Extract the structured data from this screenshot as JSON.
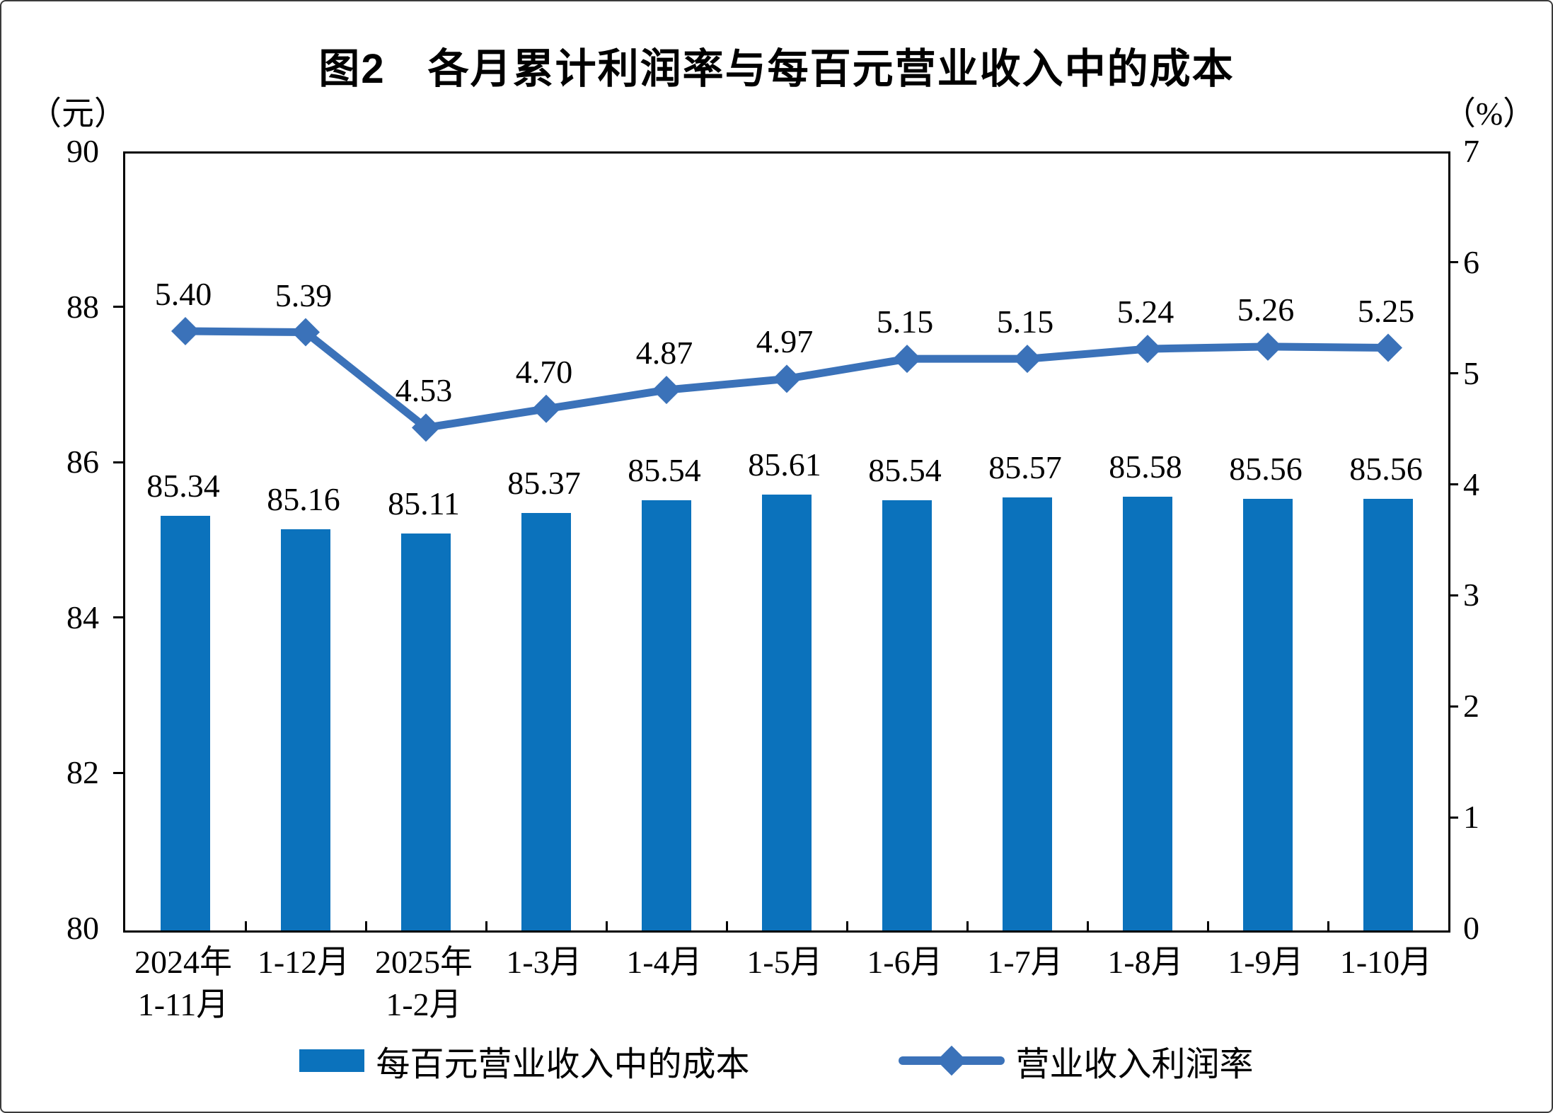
{
  "title": "图2　各月累计利润率与每百元营业收入中的成本",
  "left_axis_unit": "（元）",
  "right_axis_unit": "（%）",
  "colors": {
    "bar": "#0b72bc",
    "line": "#3b72b9",
    "text": "#000000"
  },
  "legend": {
    "items": [
      {
        "label": "每百元营业收入中的成本",
        "marker": "bar-swatch"
      },
      {
        "label": "营业收入利润率",
        "marker": "line-diamond-swatch"
      }
    ]
  },
  "chart_data": {
    "type": "bar",
    "subtype": "bar+line combo, dual axis",
    "categories": [
      "2024年\n1-11月",
      "1-12月",
      "2025年\n1-2月",
      "1-3月",
      "1-4月",
      "1-5月",
      "1-6月",
      "1-7月",
      "1-8月",
      "1-9月",
      "1-10月"
    ],
    "series": [
      {
        "name": "每百元营业收入中的成本",
        "type": "bar",
        "axis": "left",
        "values": [
          85.34,
          85.16,
          85.11,
          85.37,
          85.54,
          85.61,
          85.54,
          85.57,
          85.58,
          85.56,
          85.56
        ]
      },
      {
        "name": "营业收入利润率",
        "type": "line",
        "axis": "right",
        "values": [
          5.4,
          5.39,
          4.53,
          4.7,
          4.87,
          4.97,
          5.15,
          5.15,
          5.24,
          5.26,
          5.25
        ]
      }
    ],
    "title": "图2　各月累计利润率与每百元营业收入中的成本",
    "xlabel": "",
    "ylabel_left": "（元）",
    "ylabel_right": "（%）",
    "left_axis": {
      "min": 80,
      "max": 90,
      "ticks": [
        80,
        82,
        84,
        86,
        88,
        90
      ]
    },
    "right_axis": {
      "min": 0,
      "max": 7,
      "ticks": [
        0,
        1,
        2,
        3,
        4,
        5,
        6,
        7
      ]
    },
    "grid": false,
    "data_labels": true,
    "legend_position": "bottom"
  }
}
